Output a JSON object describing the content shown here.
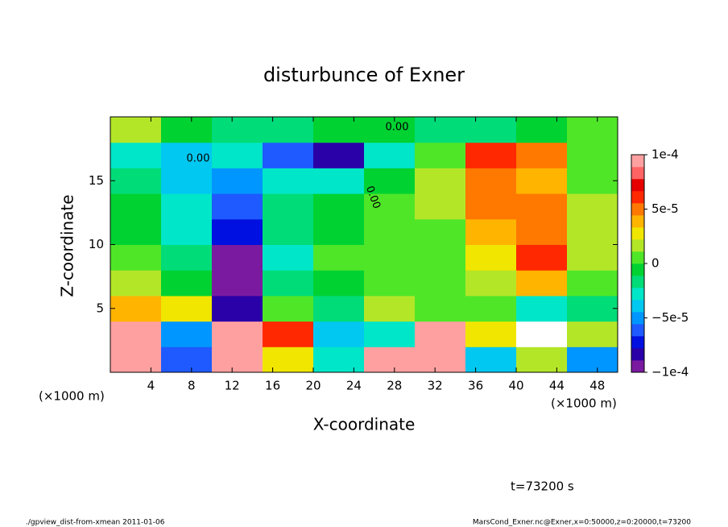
{
  "chart_data": {
    "type": "heatmap",
    "title": "disturbunce of Exner",
    "xlabel": "X-coordinate",
    "ylabel": "Z-coordinate",
    "x_unit_label": "(×1000 m)",
    "xlim": [
      0,
      50
    ],
    "xticks": [
      4,
      8,
      12,
      16,
      20,
      24,
      28,
      32,
      36,
      40,
      44,
      48
    ],
    "ylim": [
      0,
      20
    ],
    "yticks": [
      5,
      10,
      15
    ],
    "x_bins": [
      0,
      5,
      10,
      15,
      20,
      25,
      30,
      35,
      40,
      45,
      50
    ],
    "y_bins": [
      0,
      2,
      4,
      6,
      8,
      10,
      12,
      14,
      16,
      18,
      20
    ],
    "z": [
      [
        0.0001,
        -6e-05,
        0.0001,
        3e-05,
        -3e-05,
        0.0001,
        0.0001,
        -4e-05,
        2e-05,
        -5e-05
      ],
      [
        0.0001,
        -5e-05,
        0.0001,
        6e-05,
        -4e-05,
        -3e-05,
        0.0001,
        3e-05,
        0.00012,
        2e-05
      ],
      [
        4e-05,
        3e-05,
        -8e-05,
        1e-05,
        -2e-05,
        2e-05,
        1e-05,
        1e-05,
        -3e-05,
        -2e-05
      ],
      [
        2e-05,
        -1e-05,
        -0.0001,
        -2e-05,
        -1e-05,
        1e-05,
        1e-05,
        2e-05,
        4e-05,
        1e-05
      ],
      [
        0,
        -2e-05,
        -9e-05,
        -3e-05,
        0,
        1e-05,
        1e-05,
        3e-05,
        6e-05,
        2e-05
      ],
      [
        -1e-05,
        -3e-05,
        -7e-05,
        -2e-05,
        -1e-05,
        1e-05,
        1e-05,
        4e-05,
        5e-05,
        2e-05
      ],
      [
        -1e-05,
        -3e-05,
        -6e-05,
        -2e-05,
        -1e-05,
        1e-05,
        2e-05,
        5e-05,
        5e-05,
        2e-05
      ],
      [
        -2e-05,
        -4e-05,
        -5e-05,
        -3e-05,
        -3e-05,
        -1e-05,
        2e-05,
        5e-05,
        4e-05,
        1e-05
      ],
      [
        -3e-05,
        -4e-05,
        -3e-05,
        -6e-05,
        -8e-05,
        -3e-05,
        0,
        6e-05,
        5e-05,
        0
      ],
      [
        2e-05,
        -1e-05,
        -2e-05,
        -2e-05,
        -1e-05,
        -1e-05,
        -2e-05,
        -2e-05,
        -1e-05,
        0
      ]
    ],
    "clim": [
      -0.0001,
      0.0001
    ],
    "cticks": [
      {
        "value": -0.0001,
        "label": "−1e-4"
      },
      {
        "value": -5e-05,
        "label": "−5e-5"
      },
      0,
      {
        "value": 5e-05,
        "label": "5e-5"
      },
      {
        "value": 0.0001,
        "label": "1e-4"
      }
    ],
    "colormap": [
      "#7a1aa0",
      "#2a00a8",
      "#0010e0",
      "#1e5aff",
      "#0096ff",
      "#00c8f0",
      "#00e6c8",
      "#00dc78",
      "#00d232",
      "#50e628",
      "#b4e628",
      "#f0e600",
      "#ffb400",
      "#ff7800",
      "#ff2800",
      "#e60000",
      "#ff6464",
      "#ffa0a0"
    ],
    "over_color": "#ffffff",
    "annotations": [
      "0.00",
      "0.00",
      "0.00"
    ],
    "time_label": "t=73200 s",
    "footer_left": "./gpview_dist-from-xmean  2011-01-06",
    "footer_right": "MarsCond_Exner.nc@Exner,x=0:50000,z=0:20000,t=73200"
  }
}
